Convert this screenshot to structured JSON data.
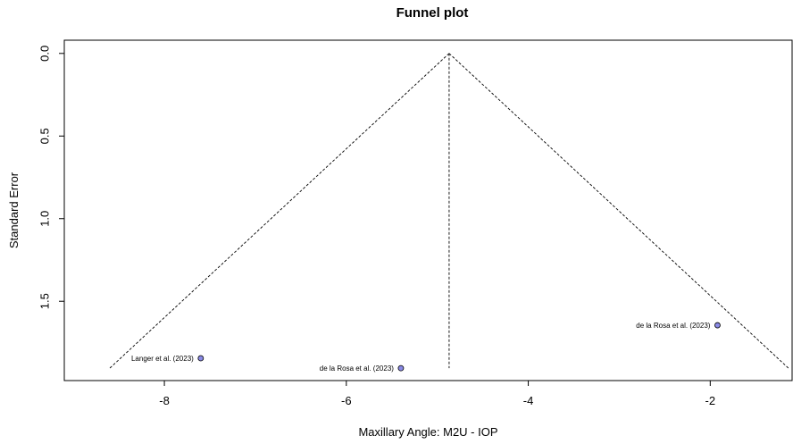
{
  "chart_data": {
    "type": "scatter",
    "title": "Funnel plot",
    "xlabel": "Maxillary Angle: M2U - IOP",
    "ylabel": "Standard Error",
    "xlim": [
      -9.1,
      -1.1
    ],
    "ylim": [
      1.98,
      -0.08
    ],
    "y_reversed": true,
    "x_ticks": [
      -8,
      -6,
      -4,
      -2
    ],
    "y_ticks": [
      0.0,
      0.5,
      1.0,
      1.5
    ],
    "x_tick_labels": [
      "-8",
      "-6",
      "-4",
      "-2"
    ],
    "y_tick_labels": [
      "0.0",
      "0.5",
      "1.0",
      "1.5"
    ],
    "grid": false,
    "summary_estimate": -4.87,
    "funnel": {
      "apex": [
        -4.87,
        0.0
      ],
      "left_base": [
        -8.6,
        1.905
      ],
      "right_base": [
        -1.14,
        1.905
      ],
      "center_base": [
        -4.87,
        1.905
      ]
    },
    "point_color": "#8a8ae6",
    "points": [
      {
        "x": -7.6,
        "y": 1.845,
        "label": "Langer et al. (2023)",
        "label_side": "left"
      },
      {
        "x": -5.4,
        "y": 1.905,
        "label": "de la Rosa et al. (2023)",
        "label_side": "left"
      },
      {
        "x": -1.92,
        "y": 1.645,
        "label": "de la Rosa et al. (2023)",
        "label_side": "left"
      }
    ]
  }
}
